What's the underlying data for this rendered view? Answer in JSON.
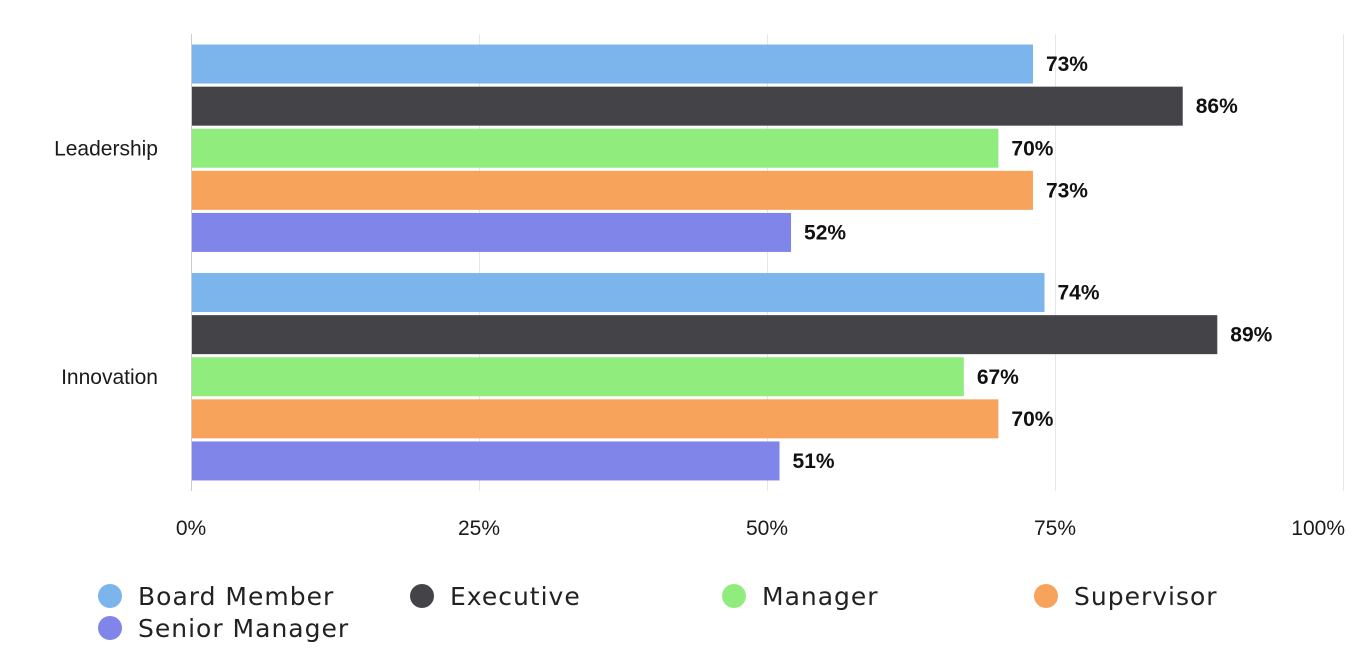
{
  "chart_data": {
    "type": "bar",
    "orientation": "horizontal",
    "categories": [
      "Leadership",
      "Innovation"
    ],
    "series": [
      {
        "name": "Board Member",
        "color": "#7cb4ec",
        "values": [
          73,
          74
        ]
      },
      {
        "name": "Executive",
        "color": "#434348",
        "values": [
          86,
          89
        ]
      },
      {
        "name": "Manager",
        "color": "#90ed7d",
        "values": [
          70,
          67
        ]
      },
      {
        "name": "Supervisor",
        "color": "#f7a35c",
        "values": [
          73,
          70
        ]
      },
      {
        "name": "Senior Manager",
        "color": "#8085e9",
        "values": [
          52,
          51
        ]
      }
    ],
    "value_suffix": "%",
    "xlim": [
      0,
      100
    ],
    "xticks": [
      0,
      25,
      50,
      75,
      100
    ],
    "xtick_labels": [
      "0%",
      "25%",
      "50%",
      "75%",
      "100%"
    ],
    "grid": true,
    "legend": "bottom",
    "title": "",
    "xlabel": "",
    "ylabel": ""
  }
}
